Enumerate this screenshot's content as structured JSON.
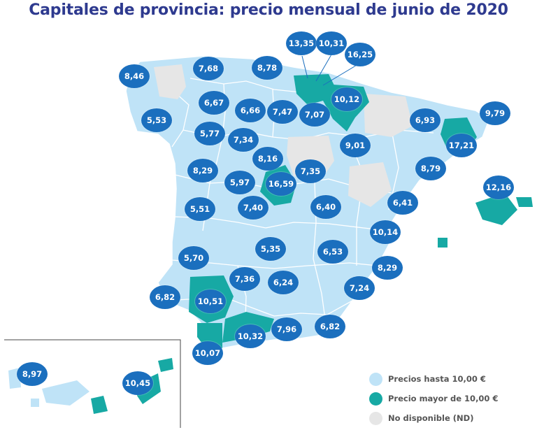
{
  "title": "Capitales de provincia: precio mensual de junio de 2020",
  "colors": {
    "under_10": "#bfe3f7",
    "over_10": "#17a9a4",
    "not_available": "#e6e6e6",
    "badge": "#1b6fbe",
    "title": "#2e3a8f"
  },
  "badges": [
    {
      "name": "badge-coruna",
      "value": "8,46"
    },
    {
      "name": "badge-asturias",
      "value": "7,68"
    },
    {
      "name": "badge-cantabria",
      "value": "8,78"
    },
    {
      "name": "badge-bizkaia",
      "value": "13,35"
    },
    {
      "name": "badge-gipuzkoa",
      "value": "10,31"
    },
    {
      "name": "badge-alava",
      "value": "16,25"
    },
    {
      "name": "badge-navarra",
      "value": "10,12"
    },
    {
      "name": "badge-lugo",
      "value": "6,67"
    },
    {
      "name": "badge-palencia",
      "value": "6,66"
    },
    {
      "name": "badge-burgos",
      "value": "7,47"
    },
    {
      "name": "badge-larioja",
      "value": "7,07"
    },
    {
      "name": "badge-pontevedra",
      "value": "5,53"
    },
    {
      "name": "badge-zamora",
      "value": "5,77"
    },
    {
      "name": "badge-valladolid",
      "value": "7,34"
    },
    {
      "name": "badge-segovia",
      "value": "8,16"
    },
    {
      "name": "badge-lleida",
      "value": "6,93"
    },
    {
      "name": "badge-girona",
      "value": "9,79"
    },
    {
      "name": "badge-barcelona",
      "value": "17,21"
    },
    {
      "name": "badge-zaragoza",
      "value": "9,01"
    },
    {
      "name": "badge-salamanca",
      "value": "8,29"
    },
    {
      "name": "badge-avila",
      "value": "5,97"
    },
    {
      "name": "badge-madrid",
      "value": "16,59"
    },
    {
      "name": "badge-guadalajara",
      "value": "7,35"
    },
    {
      "name": "badge-tarragona",
      "value": "8,79"
    },
    {
      "name": "badge-baleares",
      "value": "12,16"
    },
    {
      "name": "badge-caceres",
      "value": "5,51"
    },
    {
      "name": "badge-toledo",
      "value": "7,40"
    },
    {
      "name": "badge-cuenca",
      "value": "6,40"
    },
    {
      "name": "badge-castellon",
      "value": "6,41"
    },
    {
      "name": "badge-valencia",
      "value": "10,14"
    },
    {
      "name": "badge-badajoz",
      "value": "5,70"
    },
    {
      "name": "badge-ciudadreal",
      "value": "5,35"
    },
    {
      "name": "badge-albacete",
      "value": "6,53"
    },
    {
      "name": "badge-alicante",
      "value": "8,29"
    },
    {
      "name": "badge-cordoba",
      "value": "7,36"
    },
    {
      "name": "badge-jaen",
      "value": "6,24"
    },
    {
      "name": "badge-murcia",
      "value": "7,24"
    },
    {
      "name": "badge-huelva",
      "value": "6,82"
    },
    {
      "name": "badge-sevilla",
      "value": "10,51"
    },
    {
      "name": "badge-malaga",
      "value": "10,32"
    },
    {
      "name": "badge-granada",
      "value": "7,96"
    },
    {
      "name": "badge-almeria",
      "value": "6,82"
    },
    {
      "name": "badge-cadiz",
      "value": "10,07"
    },
    {
      "name": "badge-tenerife",
      "value": "8,97"
    },
    {
      "name": "badge-laspalmas",
      "value": "10,45"
    }
  ],
  "legend": [
    {
      "label": "Precios hasta 10,00 €",
      "color": "#bfe3f7"
    },
    {
      "label": "Precio mayor de 10,00 €",
      "color": "#17a9a4"
    },
    {
      "label": "No disponible (ND)",
      "color": "#e6e6e6"
    }
  ]
}
